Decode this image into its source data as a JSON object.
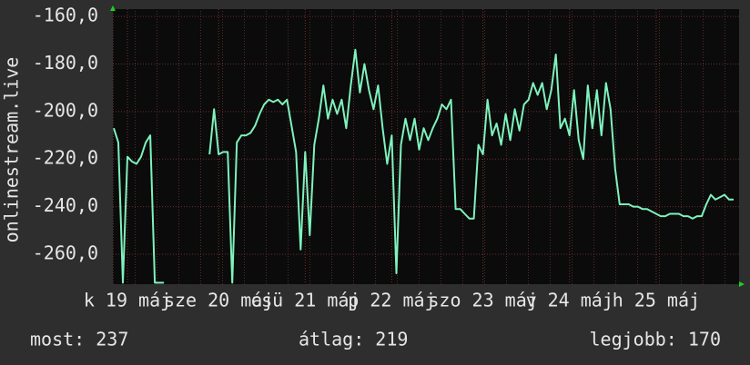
{
  "chart_data": {
    "type": "line",
    "ylabel": "onlinestream.live",
    "ylim": [
      -272.6,
      -156.9
    ],
    "yticks": [
      {
        "value": -160,
        "label": "-160,0"
      },
      {
        "value": -180,
        "label": "-180,0"
      },
      {
        "value": -200,
        "label": "-200,0"
      },
      {
        "value": -220,
        "label": "-220,0"
      },
      {
        "value": -240,
        "label": "-240,0"
      },
      {
        "value": -260,
        "label": "-260,0"
      }
    ],
    "grid": true,
    "categories": [
      null,
      null,
      null,
      "k 19 máj",
      null,
      null,
      null,
      null,
      null,
      null,
      null,
      null,
      null,
      null,
      null,
      null,
      null,
      null,
      null,
      null,
      null,
      null,
      null,
      "sze 20 máj",
      null,
      null,
      null,
      null,
      null,
      null,
      null,
      null,
      null,
      null,
      null,
      null,
      null,
      null,
      null,
      null,
      null,
      null,
      "csü 21 máj",
      null,
      null,
      null,
      null,
      null,
      null,
      null,
      null,
      null,
      null,
      null,
      null,
      null,
      null,
      null,
      null,
      null,
      null,
      "p 22 máj",
      null,
      null,
      null,
      null,
      null,
      null,
      null,
      null,
      null,
      null,
      null,
      null,
      null,
      null,
      null,
      null,
      null,
      null,
      null,
      "szo 23 máj",
      null,
      null,
      null,
      null,
      null,
      null,
      null,
      null,
      null,
      null,
      null,
      null,
      null,
      null,
      null,
      null,
      null,
      null,
      "v 24 máj",
      null,
      null,
      null,
      null,
      null,
      null,
      null,
      null,
      null,
      null,
      null,
      null,
      null,
      null,
      null,
      null,
      null,
      null,
      "h 25 máj",
      null,
      null,
      null,
      null,
      null,
      null,
      null,
      null,
      null,
      null,
      null,
      null,
      null,
      null,
      null,
      null,
      null
    ],
    "series": [
      {
        "color": "#7ff2bd",
        "values": [
          -207,
          -213,
          -272,
          -219,
          -221,
          -222,
          -219,
          -213,
          -210,
          -272,
          -272,
          -272,
          null,
          null,
          null,
          null,
          null,
          null,
          null,
          null,
          null,
          -218,
          -199,
          -218,
          -217,
          -217,
          -272,
          -213,
          -210,
          -210,
          -209,
          -206,
          -201,
          -197,
          -195,
          -196,
          -195,
          -197,
          -195,
          -206,
          -217,
          -258,
          -217,
          -252,
          -214,
          -203,
          -189,
          -203,
          -195,
          -201,
          -195,
          -207,
          -189,
          -174,
          -192,
          -180,
          -191,
          -199,
          -189,
          -207,
          -222,
          -210,
          -268,
          -214,
          -203,
          -212,
          -203,
          -216,
          -207,
          -212,
          -207,
          -203,
          -197,
          -199,
          -195,
          -241,
          -241,
          -243,
          -245,
          -245,
          -214,
          -218,
          -195,
          -210,
          -205,
          -214,
          -201,
          -212,
          -199,
          -208,
          -197,
          -195,
          -188,
          -193,
          -188,
          -199,
          -191,
          -176,
          -207,
          -203,
          -210,
          -191,
          -212,
          -220,
          -189,
          -207,
          -191,
          -210,
          -188,
          -199,
          -224,
          -239,
          -239,
          -239,
          -240,
          -240,
          -241,
          -241,
          -242,
          -243,
          -244,
          -244,
          -243,
          -243,
          -243,
          -244,
          -244,
          -245,
          -244,
          -244,
          -239,
          -235,
          -237,
          -236,
          -235,
          -237,
          -237
        ]
      }
    ],
    "annotations": [
      "most: 237",
      "átlag: 219",
      "legjobb: 170"
    ]
  }
}
